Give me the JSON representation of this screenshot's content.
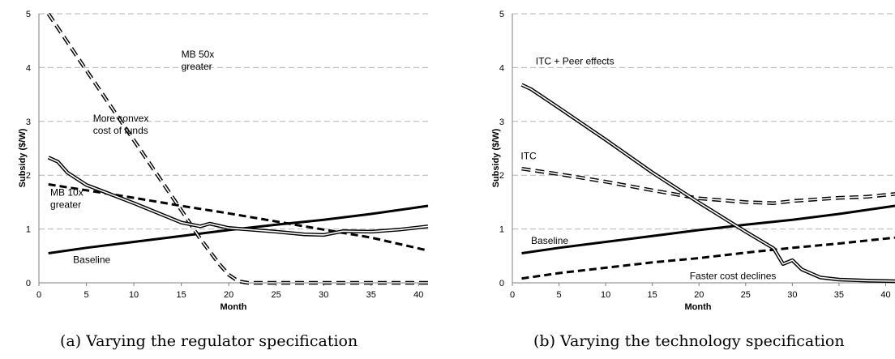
{
  "chart_data": [
    {
      "type": "line",
      "caption": "(a)  Varying the regulator specification",
      "xlabel": "Month",
      "ylabel": "Subsidy ($/W)",
      "xlim": [
        0,
        41
      ],
      "ylim": [
        0,
        5
      ],
      "xticks": [
        "0",
        "5",
        "10",
        "15",
        "20",
        "25",
        "30",
        "35",
        "40"
      ],
      "yticks": [
        "0",
        "1",
        "2",
        "3",
        "4",
        "5"
      ],
      "grid": true,
      "series": [
        {
          "style": "solid-thick",
          "label": "Baseline",
          "x": [
            1,
            5,
            10,
            15,
            20,
            25,
            30,
            35,
            41
          ],
          "y": [
            0.55,
            0.65,
            0.76,
            0.87,
            0.98,
            1.08,
            1.17,
            1.28,
            1.43
          ]
        },
        {
          "style": "dashed-thick",
          "label": "MB 10x greater",
          "x": [
            1,
            5,
            10,
            15,
            20,
            25,
            30,
            35,
            41
          ],
          "y": [
            1.83,
            1.72,
            1.58,
            1.43,
            1.29,
            1.14,
            0.99,
            0.84,
            0.6
          ]
        },
        {
          "style": "dashed-double",
          "label": "MB 50x greater",
          "x": [
            1,
            5,
            10,
            15,
            17,
            19,
            20,
            21,
            22,
            25,
            30,
            35,
            41
          ],
          "y": [
            5.0,
            3.95,
            2.65,
            1.35,
            0.82,
            0.35,
            0.15,
            0.03,
            0.0,
            0.0,
            0.0,
            0.0,
            0.0
          ]
        },
        {
          "style": "solid-double",
          "label": "More convex cost of funds",
          "x": [
            1,
            2,
            3,
            5,
            10,
            15,
            17,
            18,
            20,
            25,
            28,
            30,
            32,
            35,
            38,
            41
          ],
          "y": [
            2.33,
            2.25,
            2.05,
            1.82,
            1.48,
            1.12,
            1.05,
            1.1,
            1.02,
            0.95,
            0.9,
            0.89,
            0.96,
            0.95,
            0.99,
            1.05
          ]
        }
      ],
      "annotations": [
        {
          "text": [
            "MB 50x",
            "greater"
          ],
          "x": 15.0,
          "y": 4.19
        },
        {
          "text": [
            "More convex",
            "cost of funds"
          ],
          "x": 5.7,
          "y": 3.0
        },
        {
          "text": [
            "MB 10x",
            "greater"
          ],
          "x": 1.2,
          "y": 1.62
        },
        {
          "text": [
            "Baseline"
          ],
          "x": 3.6,
          "y": 0.37
        }
      ]
    },
    {
      "type": "line",
      "caption": "(b)  Varying the technology specification",
      "xlabel": "Month",
      "ylabel": "Subsidy ($/W)",
      "xlim": [
        0,
        41
      ],
      "ylim": [
        0,
        5
      ],
      "xticks": [
        "0",
        "5",
        "10",
        "15",
        "20",
        "25",
        "30",
        "35",
        "40"
      ],
      "yticks": [
        "0",
        "1",
        "2",
        "3",
        "4",
        "5"
      ],
      "grid": true,
      "series": [
        {
          "style": "solid-thick",
          "label": "Baseline",
          "x": [
            1,
            5,
            10,
            15,
            20,
            25,
            30,
            35,
            41
          ],
          "y": [
            0.55,
            0.65,
            0.76,
            0.87,
            0.98,
            1.08,
            1.17,
            1.28,
            1.43
          ]
        },
        {
          "style": "dashed-thick",
          "label": "Faster cost declines",
          "x": [
            1,
            5,
            10,
            15,
            20,
            25,
            30,
            35,
            41
          ],
          "y": [
            0.08,
            0.18,
            0.28,
            0.38,
            0.46,
            0.56,
            0.65,
            0.73,
            0.84
          ]
        },
        {
          "style": "dashed-double",
          "label": "ITC",
          "x": [
            1,
            5,
            10,
            15,
            18,
            20,
            25,
            28,
            30,
            35,
            38,
            41
          ],
          "y": [
            2.12,
            2.02,
            1.88,
            1.72,
            1.63,
            1.57,
            1.5,
            1.48,
            1.52,
            1.58,
            1.6,
            1.65
          ]
        },
        {
          "style": "solid-double",
          "label": "ITC + Peer effects",
          "x": [
            1,
            2,
            5,
            10,
            15,
            20,
            25,
            28,
            29,
            30,
            31,
            33,
            35,
            38,
            41
          ],
          "y": [
            3.68,
            3.6,
            3.25,
            2.66,
            2.05,
            1.49,
            0.95,
            0.64,
            0.35,
            0.42,
            0.25,
            0.1,
            0.06,
            0.04,
            0.03
          ]
        }
      ],
      "annotations": [
        {
          "text": [
            "ITC + Peer effects"
          ],
          "x": 2.5,
          "y": 4.06
        },
        {
          "text": [
            "ITC"
          ],
          "x": 0.9,
          "y": 2.3
        },
        {
          "text": [
            "Baseline"
          ],
          "x": 2.0,
          "y": 0.72
        },
        {
          "text": [
            "Faster cost declines"
          ],
          "x": 19.0,
          "y": 0.07
        }
      ]
    }
  ]
}
